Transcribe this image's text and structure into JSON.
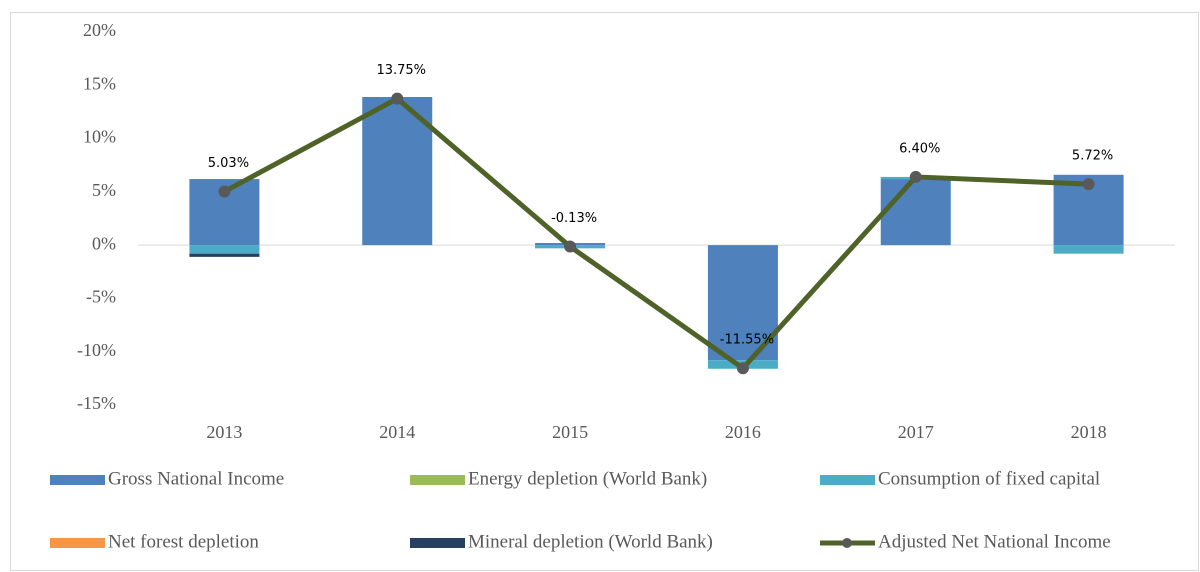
{
  "chart_data": {
    "type": "bar",
    "stacked": true,
    "categories": [
      "2013",
      "2014",
      "2015",
      "2016",
      "2017",
      "2018"
    ],
    "series": [
      {
        "name": "Gross National Income",
        "type": "bar",
        "color": "#4f81bd",
        "values": [
          6.2,
          13.9,
          0.2,
          -10.8,
          6.2,
          6.6
        ]
      },
      {
        "name": "Energy depletion (World Bank)",
        "type": "bar",
        "color": "#9bbb59",
        "values": [
          0,
          0,
          0,
          0,
          0,
          0
        ]
      },
      {
        "name": "Consumption of fixed capital",
        "type": "bar",
        "color": "#4bacc6",
        "values": [
          -0.8,
          0,
          -0.3,
          -0.8,
          0.2,
          -0.8
        ]
      },
      {
        "name": "Net forest depletion",
        "type": "bar",
        "color": "#f79646",
        "values": [
          0,
          0,
          0,
          0,
          0,
          0
        ]
      },
      {
        "name": "Mineral depletion (World Bank)",
        "type": "bar",
        "color": "#254061",
        "values": [
          -0.3,
          0,
          0,
          0,
          0,
          0
        ]
      },
      {
        "name": "Adjusted Net National Income",
        "type": "line",
        "color": "#4f6228",
        "marker_color": "#595959",
        "values": [
          5.03,
          13.75,
          -0.13,
          -11.55,
          6.4,
          5.72
        ],
        "value_labels": [
          "5.03%",
          "13.75%",
          "-0.13%",
          "-11.55%",
          "6.40%",
          "5.72%"
        ]
      }
    ],
    "ylim": [
      -15,
      20
    ],
    "yticks": [
      {
        "value": -15,
        "label": "-15%"
      },
      {
        "value": -10,
        "label": "-10%"
      },
      {
        "value": -5,
        "label": "-5%"
      },
      {
        "value": 0,
        "label": "0%"
      },
      {
        "value": 5,
        "label": "5%"
      },
      {
        "value": 10,
        "label": "10%"
      },
      {
        "value": 15,
        "label": "15%"
      },
      {
        "value": 20,
        "label": "20%"
      }
    ],
    "legend": "bottom"
  }
}
